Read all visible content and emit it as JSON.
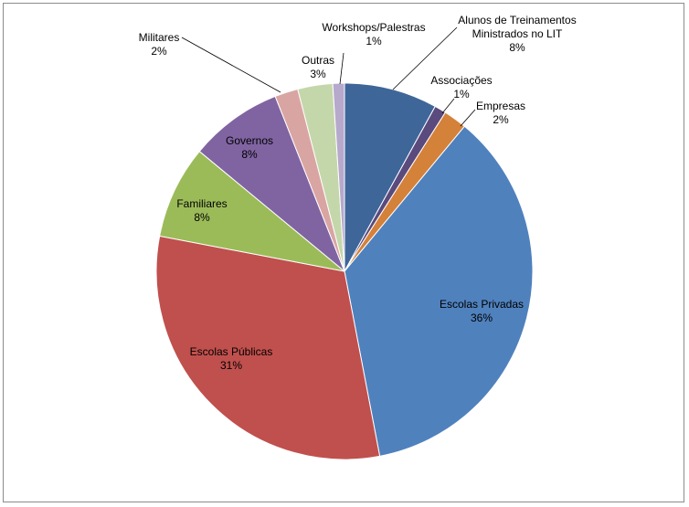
{
  "chart_data": {
    "type": "pie",
    "start_angle_deg": 0,
    "slices": [
      {
        "name": "Alunos de Treinamentos Ministrados no LIT",
        "label_lines": [
          "Alunos de Treinamentos",
          "Ministrados no LIT"
        ],
        "value": 8,
        "pct_label": "8%",
        "color": "#3E6699"
      },
      {
        "name": "Associações",
        "label_lines": [
          "Associações"
        ],
        "value": 1,
        "pct_label": "1%",
        "color": "#5B4A7D"
      },
      {
        "name": "Empresas",
        "label_lines": [
          "Empresas"
        ],
        "value": 2,
        "pct_label": "2%",
        "color": "#D4813A"
      },
      {
        "name": "Escolas Privadas",
        "label_lines": [
          "Escolas Privadas"
        ],
        "value": 36,
        "pct_label": "36%",
        "color": "#4F81BD"
      },
      {
        "name": "Escolas Públicas",
        "label_lines": [
          "Escolas Públicas"
        ],
        "value": 31,
        "pct_label": "31%",
        "color": "#C0504D"
      },
      {
        "name": "Familiares",
        "label_lines": [
          "Familiares"
        ],
        "value": 8,
        "pct_label": "8%",
        "color": "#9BBB59"
      },
      {
        "name": "Governos",
        "label_lines": [
          "Governos"
        ],
        "value": 8,
        "pct_label": "8%",
        "color": "#8064A2"
      },
      {
        "name": "Militares",
        "label_lines": [
          "Militares"
        ],
        "value": 2,
        "pct_label": "2%",
        "color": "#D9A5A3"
      },
      {
        "name": "Outras",
        "label_lines": [
          "Outras"
        ],
        "value": 3,
        "pct_label": "3%",
        "color": "#C4D7AA"
      },
      {
        "name": "Workshops/Palestras",
        "label_lines": [
          "Workshops/Palestras"
        ],
        "value": 1,
        "pct_label": "1%",
        "color": "#B6A9CC"
      }
    ]
  }
}
